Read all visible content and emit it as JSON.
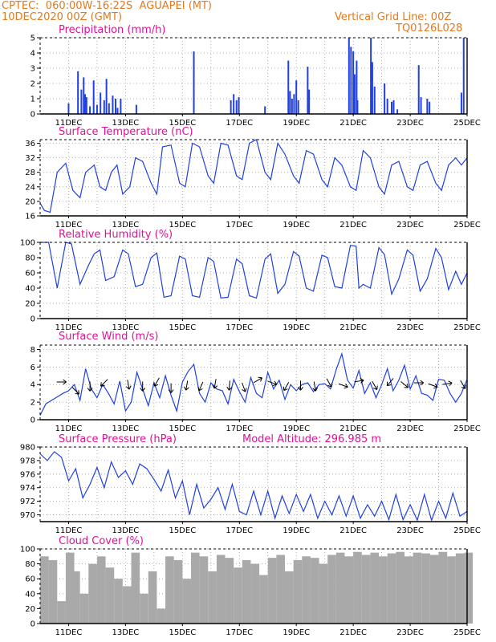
{
  "header": {
    "line1": "CPTEC:  060:00W-16:22S  AGUAPEI (MT)",
    "line2": "10DEC2020 00Z (GMT)",
    "right1": "Vertical Grid Line: 00Z",
    "right2": "TQ0126L028"
  },
  "colors": {
    "header": "#e07a20",
    "title": "#e0109a",
    "series": "#2040e0",
    "cloud": "#a9a9a9",
    "grid": "#999999"
  },
  "x_labels": [
    "11DEC",
    "13DEC",
    "15DEC",
    "17DEC",
    "19DEC",
    "21DEC",
    "23DEC",
    "25DEC"
  ],
  "chart_data": [
    {
      "type": "bar",
      "title": "Precipitation (mm/h)",
      "ylim": [
        0,
        5
      ],
      "yticks": [
        0,
        1,
        2,
        3,
        4,
        5
      ],
      "x": [
        11.0,
        11.33,
        11.45,
        11.53,
        11.58,
        11.63,
        11.75,
        11.88,
        12.0,
        12.12,
        12.25,
        12.33,
        12.42,
        12.55,
        12.65,
        12.72,
        12.83,
        13.38,
        15.4,
        16.7,
        16.8,
        16.9,
        16.98,
        17.9,
        18.72,
        18.78,
        18.85,
        18.92,
        19.0,
        19.07,
        19.4,
        19.45,
        20.85,
        20.92,
        21.0,
        21.05,
        21.12,
        21.15,
        21.62,
        21.67,
        21.75,
        22.1,
        22.2,
        22.35,
        22.42,
        22.55,
        23.3,
        23.38,
        23.6,
        23.68,
        24.8,
        24.88
      ],
      "values": [
        0.7,
        2.8,
        1.6,
        2.4,
        1.3,
        1.1,
        0.5,
        2.2,
        0.6,
        1.4,
        0.9,
        2.3,
        0.7,
        1.2,
        1.0,
        0.4,
        1.0,
        0.6,
        4.1,
        0.9,
        1.3,
        0.9,
        1.1,
        0.5,
        3.5,
        1.5,
        1.0,
        1.3,
        2.2,
        0.9,
        3.1,
        1.6,
        5.0,
        4.4,
        4.1,
        2.6,
        3.5,
        0.9,
        5.0,
        3.4,
        1.8,
        2.0,
        1.0,
        0.8,
        0.9,
        0.3,
        3.2,
        1.1,
        1.0,
        0.8,
        1.4,
        5.0
      ]
    },
    {
      "type": "line",
      "title": "Surface Temperature (nC)",
      "ylim": [
        16,
        37
      ],
      "yticks": [
        16,
        20,
        24,
        28,
        32,
        36
      ],
      "x": [
        10.0,
        10.15,
        10.35,
        10.6,
        10.9,
        11.15,
        11.4,
        11.6,
        11.9,
        12.1,
        12.3,
        12.5,
        12.7,
        12.9,
        13.15,
        13.35,
        13.6,
        13.9,
        14.1,
        14.3,
        14.6,
        14.9,
        15.1,
        15.35,
        15.6,
        15.9,
        16.1,
        16.35,
        16.6,
        16.9,
        17.1,
        17.35,
        17.6,
        17.9,
        18.1,
        18.35,
        18.6,
        18.9,
        19.1,
        19.35,
        19.6,
        19.9,
        20.1,
        20.35,
        20.6,
        20.9,
        21.1,
        21.35,
        21.6,
        21.9,
        22.1,
        22.35,
        22.6,
        22.9,
        23.1,
        23.35,
        23.6,
        23.9,
        24.1,
        24.35,
        24.6,
        24.8,
        25.0
      ],
      "values": [
        19.5,
        17.5,
        17.0,
        28.0,
        30.5,
        23.0,
        21.0,
        28.0,
        30.0,
        24.0,
        23.0,
        28.0,
        30.0,
        22.0,
        24.0,
        32.0,
        31.0,
        25.0,
        22.0,
        35.0,
        35.5,
        25.0,
        24.0,
        36.0,
        35.0,
        27.0,
        25.0,
        36.0,
        35.5,
        27.0,
        26.0,
        36.0,
        37.0,
        28.0,
        26.0,
        36.0,
        33.0,
        27.0,
        25.0,
        34.0,
        33.0,
        26.0,
        24.0,
        32.0,
        30.0,
        24.0,
        23.0,
        34.0,
        32.0,
        24.0,
        22.0,
        30.0,
        31.0,
        24.0,
        23.0,
        30.0,
        31.0,
        25.0,
        23.0,
        30.0,
        32.0,
        30.0,
        32.0
      ]
    },
    {
      "type": "line",
      "title": "Relative Humidity (%)",
      "ylim": [
        0,
        100
      ],
      "yticks": [
        0,
        20,
        40,
        60,
        80,
        100
      ],
      "x": [
        10.0,
        10.3,
        10.6,
        10.9,
        11.1,
        11.4,
        11.7,
        11.9,
        12.1,
        12.3,
        12.6,
        12.9,
        13.1,
        13.35,
        13.6,
        13.9,
        14.1,
        14.35,
        14.6,
        14.9,
        15.1,
        15.35,
        15.6,
        15.9,
        16.1,
        16.35,
        16.6,
        16.9,
        17.1,
        17.35,
        17.6,
        17.9,
        18.1,
        18.35,
        18.6,
        18.9,
        19.1,
        19.35,
        19.6,
        19.9,
        20.1,
        20.35,
        20.6,
        20.9,
        21.1,
        21.2,
        21.35,
        21.6,
        21.9,
        22.1,
        22.35,
        22.6,
        22.9,
        23.1,
        23.35,
        23.6,
        23.9,
        24.1,
        24.35,
        24.6,
        24.8,
        25.0
      ],
      "values": [
        100,
        100,
        40,
        100,
        98,
        45,
        70,
        85,
        90,
        50,
        55,
        90,
        85,
        42,
        45,
        80,
        86,
        28,
        30,
        82,
        78,
        30,
        28,
        80,
        75,
        27,
        28,
        78,
        72,
        30,
        27,
        78,
        85,
        33,
        45,
        88,
        82,
        40,
        36,
        83,
        80,
        42,
        40,
        96,
        95,
        40,
        45,
        40,
        93,
        84,
        32,
        52,
        90,
        83,
        36,
        52,
        92,
        80,
        38,
        62,
        45,
        60
      ]
    },
    {
      "type": "line",
      "title": "Surface Wind (m/s)",
      "ylim": [
        0,
        8.5
      ],
      "yticks": [
        0,
        2,
        4,
        6,
        8
      ],
      "x": [
        10.0,
        10.2,
        10.4,
        10.6,
        10.8,
        11.0,
        11.2,
        11.4,
        11.6,
        11.8,
        12.0,
        12.2,
        12.4,
        12.6,
        12.8,
        13.0,
        13.2,
        13.4,
        13.6,
        13.8,
        14.0,
        14.2,
        14.4,
        14.6,
        14.8,
        15.0,
        15.2,
        15.4,
        15.6,
        15.8,
        16.0,
        16.2,
        16.4,
        16.6,
        16.8,
        17.0,
        17.2,
        17.4,
        17.6,
        17.8,
        18.0,
        18.2,
        18.4,
        18.6,
        18.8,
        19.0,
        19.2,
        19.4,
        19.6,
        19.8,
        20.0,
        20.2,
        20.4,
        20.6,
        20.8,
        21.0,
        21.2,
        21.4,
        21.6,
        21.8,
        22.0,
        22.2,
        22.4,
        22.6,
        22.8,
        23.0,
        23.2,
        23.4,
        23.6,
        23.8,
        24.0,
        24.2,
        24.4,
        24.6,
        24.8,
        25.0
      ],
      "values": [
        0.5,
        1.8,
        2.2,
        2.6,
        3.0,
        3.3,
        4.0,
        2.2,
        5.8,
        3.5,
        2.5,
        4.0,
        3.0,
        1.8,
        4.4,
        1.0,
        2.0,
        5.4,
        3.5,
        1.6,
        4.2,
        2.5,
        5.0,
        2.8,
        1.0,
        4.3,
        5.5,
        6.3,
        3.0,
        2.0,
        4.2,
        3.5,
        3.3,
        1.8,
        4.6,
        3.2,
        2.0,
        4.8,
        3.0,
        2.5,
        5.4,
        3.5,
        4.5,
        2.3,
        4.0,
        3.3,
        4.0,
        4.2,
        3.2,
        4.0,
        4.1,
        3.5,
        5.7,
        7.5,
        4.5,
        3.6,
        5.6,
        3.0,
        4.2,
        2.5,
        4.0,
        5.8,
        3.3,
        4.5,
        6.2,
        3.5,
        5.0,
        3.0,
        2.8,
        2.2,
        4.6,
        4.5,
        3.0,
        2.0,
        3.0,
        4.6
      ]
    },
    {
      "type": "line",
      "title": "Surface Pressure (hPa)",
      "annotation": "Model Altitude: 296.985 m",
      "ylim": [
        969,
        980
      ],
      "yticks": [
        970,
        972,
        974,
        976,
        978,
        980
      ],
      "x": [
        10.0,
        10.25,
        10.5,
        10.75,
        11.0,
        11.25,
        11.5,
        11.75,
        12.0,
        12.25,
        12.5,
        12.75,
        13.0,
        13.25,
        13.5,
        13.75,
        14.0,
        14.25,
        14.5,
        14.75,
        15.0,
        15.25,
        15.5,
        15.75,
        16.0,
        16.25,
        16.5,
        16.75,
        17.0,
        17.25,
        17.5,
        17.75,
        18.0,
        18.25,
        18.5,
        18.75,
        19.0,
        19.25,
        19.5,
        19.75,
        20.0,
        20.25,
        20.5,
        20.75,
        21.0,
        21.25,
        21.5,
        21.75,
        22.0,
        22.25,
        22.5,
        22.75,
        23.0,
        23.25,
        23.5,
        23.75,
        24.0,
        24.25,
        24.5,
        24.75,
        25.0
      ],
      "values": [
        979.0,
        978.0,
        979.3,
        978.5,
        975.0,
        976.8,
        972.5,
        974.5,
        977.0,
        974.0,
        977.8,
        975.5,
        976.5,
        974.5,
        977.5,
        976.8,
        975.2,
        973.5,
        976.6,
        972.5,
        975.0,
        970.0,
        974.5,
        971.0,
        972.3,
        974.0,
        970.8,
        974.5,
        970.5,
        970.0,
        973.5,
        970.0,
        973.5,
        969.5,
        972.8,
        970.2,
        973.0,
        970.5,
        973.0,
        969.5,
        972.0,
        970.0,
        972.8,
        969.8,
        972.8,
        969.5,
        971.5,
        969.8,
        972.0,
        969.3,
        973.0,
        969.3,
        971.5,
        969.2,
        973.0,
        969.2,
        972.0,
        969.5,
        973.2,
        969.8,
        970.5
      ]
    },
    {
      "type": "bar",
      "title": "Cloud Cover (%)",
      "ylim": [
        0,
        100
      ],
      "yticks": [
        0,
        20,
        40,
        60,
        80,
        100
      ],
      "x": [
        10.0,
        10.3,
        10.6,
        10.9,
        11.1,
        11.4,
        11.7,
        12.0,
        12.3,
        12.6,
        12.9,
        13.2,
        13.5,
        13.8,
        14.1,
        14.4,
        14.7,
        15.0,
        15.3,
        15.6,
        15.9,
        16.2,
        16.5,
        16.8,
        17.1,
        17.4,
        17.7,
        18.0,
        18.3,
        18.6,
        18.9,
        19.2,
        19.5,
        19.8,
        20.1,
        20.4,
        20.7,
        21.0,
        21.3,
        21.6,
        21.9,
        22.2,
        22.5,
        22.8,
        23.1,
        23.4,
        23.7,
        24.0,
        24.3,
        24.6,
        24.9
      ],
      "values": [
        90,
        85,
        30,
        95,
        70,
        40,
        80,
        90,
        75,
        60,
        50,
        95,
        40,
        70,
        20,
        90,
        85,
        60,
        95,
        90,
        70,
        92,
        88,
        75,
        85,
        80,
        65,
        88,
        92,
        70,
        85,
        90,
        88,
        80,
        92,
        95,
        90,
        96,
        92,
        95,
        90,
        94,
        96,
        90,
        95,
        94,
        92,
        96,
        90,
        94,
        95
      ]
    }
  ]
}
